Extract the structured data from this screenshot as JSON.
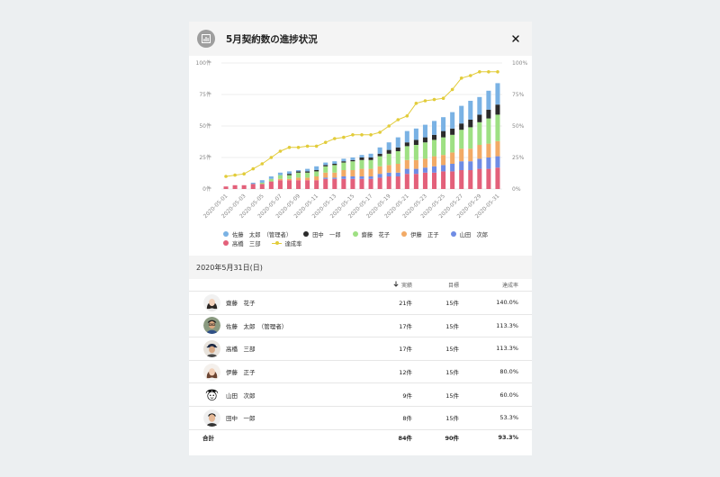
{
  "dialog": {
    "title": "5月契約数の進捗状況"
  },
  "icons": {
    "app": "bar-chart-icon",
    "close": "close-icon"
  },
  "colors": {
    "sato": "#7ab2e4",
    "tanaka": "#2b2b2b",
    "saito": "#9ee083",
    "ito": "#f2aa66",
    "yamada": "#6f8ce4",
    "takahashi": "#e3607a",
    "rate_line": "#e2cc3a",
    "grid": "#e8e8e8"
  },
  "chart_data": {
    "type": "bar",
    "stacked": true,
    "x": [
      "2020-05-01",
      "2020-05-02",
      "2020-05-03",
      "2020-05-04",
      "2020-05-05",
      "2020-05-06",
      "2020-05-07",
      "2020-05-08",
      "2020-05-09",
      "2020-05-10",
      "2020-05-11",
      "2020-05-12",
      "2020-05-13",
      "2020-05-14",
      "2020-05-15",
      "2020-05-16",
      "2020-05-17",
      "2020-05-18",
      "2020-05-19",
      "2020-05-20",
      "2020-05-21",
      "2020-05-22",
      "2020-05-23",
      "2020-05-24",
      "2020-05-25",
      "2020-05-26",
      "2020-05-27",
      "2020-05-28",
      "2020-05-29",
      "2020-05-30",
      "2020-05-31"
    ],
    "x_tick_labels": [
      "2020-05-01",
      "2020-05-03",
      "2020-05-05",
      "2020-05-07",
      "2020-05-09",
      "2020-05-11",
      "2020-05-13",
      "2020-05-15",
      "2020-05-17",
      "2020-05-19",
      "2020-05-21",
      "2020-05-23",
      "2020-05-25",
      "2020-05-27",
      "2020-05-29",
      "2020-05-31"
    ],
    "series": [
      {
        "name": "高橋　三部",
        "key": "takahashi",
        "values": [
          2,
          3,
          3,
          4,
          4,
          6,
          7,
          7,
          7,
          7,
          7,
          8,
          8,
          8,
          8,
          8,
          8,
          9,
          10,
          10,
          12,
          12,
          13,
          13,
          14,
          14,
          15,
          15,
          16,
          16,
          17
        ]
      },
      {
        "name": "山田　次郎",
        "key": "yamada",
        "values": [
          0,
          0,
          0,
          0,
          0,
          0,
          0,
          0,
          0,
          0,
          0,
          1,
          1,
          2,
          2,
          2,
          2,
          3,
          3,
          3,
          4,
          4,
          4,
          5,
          5,
          6,
          7,
          7,
          8,
          9,
          9
        ]
      },
      {
        "name": "伊藤　正子",
        "key": "ito",
        "values": [
          0,
          0,
          0,
          0,
          0,
          0,
          1,
          1,
          2,
          2,
          3,
          4,
          4,
          5,
          5,
          6,
          6,
          6,
          6,
          7,
          7,
          7,
          7,
          8,
          8,
          9,
          10,
          10,
          11,
          11,
          12
        ]
      },
      {
        "name": "齋藤　花子",
        "key": "saito",
        "values": [
          0,
          0,
          0,
          0,
          1,
          2,
          3,
          3,
          4,
          4,
          4,
          5,
          6,
          6,
          7,
          7,
          7,
          8,
          9,
          10,
          11,
          12,
          13,
          13,
          14,
          14,
          15,
          17,
          18,
          20,
          21
        ]
      },
      {
        "name": "田中　一郎",
        "key": "tanaka",
        "values": [
          0,
          0,
          0,
          0,
          0,
          0,
          0,
          1,
          1,
          1,
          1,
          1,
          1,
          1,
          1,
          2,
          2,
          2,
          3,
          3,
          3,
          4,
          4,
          4,
          5,
          5,
          5,
          6,
          6,
          7,
          8
        ]
      },
      {
        "name": "佐藤　太郎　（管理者）",
        "key": "sato",
        "values": [
          0,
          0,
          0,
          1,
          2,
          2,
          2,
          2,
          1,
          2,
          3,
          2,
          2,
          2,
          2,
          2,
          3,
          5,
          6,
          8,
          9,
          9,
          10,
          11,
          11,
          13,
          14,
          15,
          14,
          15,
          17
        ]
      }
    ],
    "line_series": {
      "name": "達成率",
      "values": [
        10,
        11,
        12,
        16,
        20,
        25,
        30,
        33,
        33,
        34,
        34,
        37,
        40,
        41,
        43,
        43,
        43,
        45,
        50,
        55,
        58,
        68,
        70,
        71,
        72,
        79,
        88,
        90,
        93,
        93,
        93
      ]
    },
    "y_left": {
      "ticks": [
        "0件",
        "25件",
        "50件",
        "75件",
        "100件"
      ],
      "range": [
        0,
        100
      ]
    },
    "y_right": {
      "ticks": [
        "0%",
        "25%",
        "50%",
        "75%",
        "100%"
      ],
      "range": [
        0,
        100
      ]
    },
    "grid": true,
    "legend_position": "bottom"
  },
  "legend": {
    "row1": [
      {
        "label": "佐藤　太郎　（管理者）",
        "key": "sato"
      },
      {
        "label": "田中　一郎",
        "key": "tanaka"
      },
      {
        "label": "齋藤　花子",
        "key": "saito"
      },
      {
        "label": "伊藤　正子",
        "key": "ito"
      },
      {
        "label": "山田　次郎",
        "key": "yamada"
      }
    ],
    "row2": [
      {
        "label": "高橋　三部",
        "key": "takahashi"
      },
      {
        "label": "達成率",
        "key": "rate_line"
      }
    ]
  },
  "summary": {
    "date": "2020年5月31日(日)",
    "headers": {
      "actual": "実績",
      "target": "目標",
      "rate": "達成率"
    },
    "rows": [
      {
        "name": "齋藤　花子",
        "actual": "21件",
        "target": "15件",
        "rate": "140.0%",
        "avatar": "avatar-woman-dark-hair"
      },
      {
        "name": "佐藤　太郎　（管理者）",
        "actual": "17件",
        "target": "15件",
        "rate": "113.3%",
        "avatar": "avatar-man-glasses"
      },
      {
        "name": "高橋　三部",
        "actual": "17件",
        "target": "15件",
        "rate": "113.3%",
        "avatar": "avatar-man-cap"
      },
      {
        "name": "伊藤　正子",
        "actual": "12件",
        "target": "15件",
        "rate": "80.0%",
        "avatar": "avatar-woman-brown-hair"
      },
      {
        "name": "山田　次郎",
        "actual": "9件",
        "target": "15件",
        "rate": "60.0%",
        "avatar": "avatar-cartoon-face"
      },
      {
        "name": "田中　一郎",
        "actual": "8件",
        "target": "15件",
        "rate": "53.3%",
        "avatar": "avatar-man-short-hair"
      }
    ],
    "total": {
      "label": "合計",
      "actual": "84件",
      "target": "90件",
      "rate": "93.3%"
    }
  }
}
